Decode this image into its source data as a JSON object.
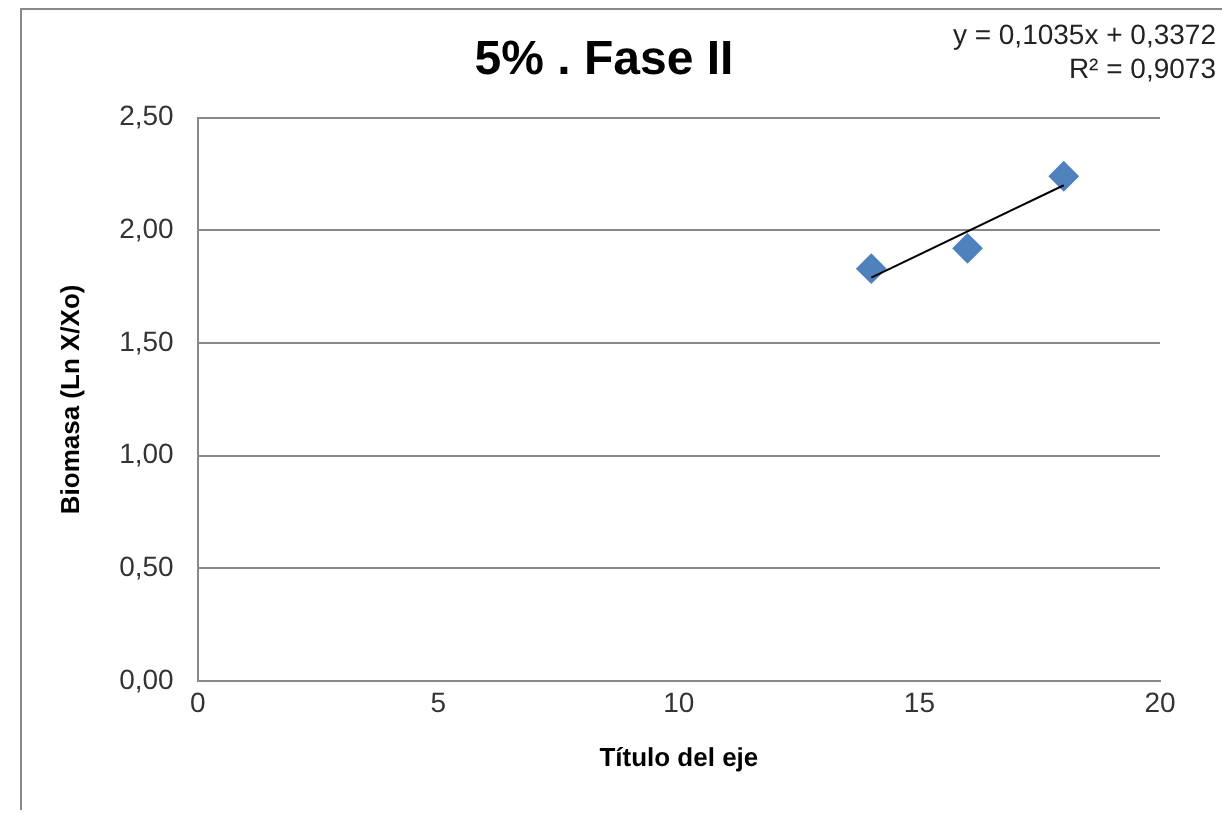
{
  "chart_data": {
    "type": "scatter",
    "title": "5% . Fase II",
    "xlabel": "Título del eje",
    "ylabel": "Biomasa (Ln X/Xo)",
    "annotations": [
      "y = 0,1035x + 0,3372",
      "R² = 0,9073"
    ],
    "series": [
      {
        "color": "#4f81bd",
        "x": [
          14,
          16,
          18
        ],
        "values": [
          1.83,
          1.92,
          2.24
        ],
        "marker": "diamond"
      },
      {
        "type": "line",
        "color": "#000000",
        "x": [
          14,
          18
        ],
        "values": [
          1.79,
          2.2
        ],
        "marker": "none",
        "line_style": "solid"
      }
    ],
    "xlim": [
      0,
      20
    ],
    "xticks": [
      0,
      5,
      10,
      15,
      20
    ],
    "ylim": [
      0,
      2.5
    ],
    "yticks": [
      {
        "value": 0,
        "label": "0,00"
      },
      {
        "value": 0.5,
        "label": "0,50"
      },
      {
        "value": 1,
        "label": "1,00"
      },
      {
        "value": 1.5,
        "label": "1,50"
      },
      {
        "value": 2,
        "label": "2,00"
      },
      {
        "value": 2.5,
        "label": "2,50"
      }
    ],
    "grid": "y",
    "legend": false
  }
}
